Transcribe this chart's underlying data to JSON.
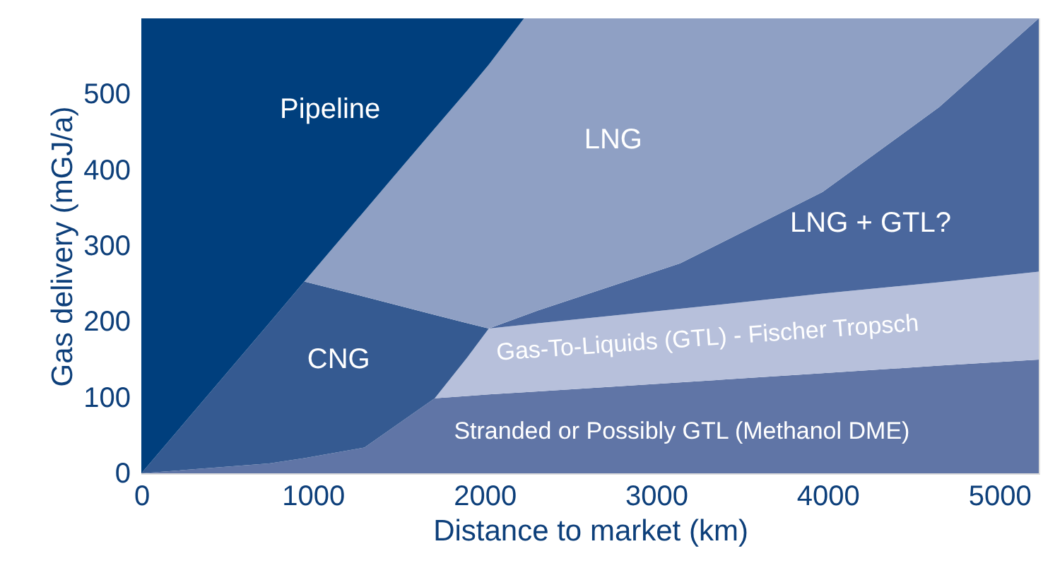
{
  "chart_data": {
    "type": "area",
    "stacked": true,
    "xlabel": "Distance to market (km)",
    "ylabel": "Gas delivery (mGJ/a)",
    "x": [
      0,
      745,
      950,
      1300,
      1710,
      1900,
      2025,
      2230,
      2314,
      3140,
      3970,
      4650,
      5230
    ],
    "xlim": [
      0,
      5230
    ],
    "ylim": [
      0,
      600
    ],
    "xticks": [
      0,
      1000,
      2000,
      3000,
      4000,
      5000
    ],
    "yticks": [
      0,
      100,
      200,
      300,
      400,
      500
    ],
    "grid": false,
    "series": [
      {
        "name": "Stranded or Possibly GTL (Methanol DME)",
        "color": "#6075a6",
        "values": [
          0,
          13,
          20,
          34,
          99,
          102,
          104,
          107,
          108,
          120,
          132,
          142,
          150
        ]
      },
      {
        "name": "Gas-To-Liquids (GTL) - Fischer Tropsch",
        "color": "#b7c0db",
        "values": [
          null,
          null,
          null,
          null,
          0,
          51,
          87,
          89,
          90,
          97,
          105,
          110,
          116
        ]
      },
      {
        "name": "CNG",
        "color": "#355a91",
        "values": [
          0,
          185,
          233,
          199,
          110,
          45,
          0,
          null,
          null,
          null,
          null,
          null,
          null
        ]
      },
      {
        "name": "LNG + GTL?",
        "color": "#4a679d",
        "values": [
          null,
          null,
          null,
          null,
          null,
          null,
          0,
          12,
          17,
          60,
          134,
          231,
          334
        ]
      },
      {
        "name": "LNG",
        "color": "#8fa0c4",
        "values": [
          null,
          null,
          0,
          113,
          246,
          307,
          348,
          392,
          385,
          323,
          229,
          117,
          0
        ]
      },
      {
        "name": "Pipeline",
        "color": "#003f7d",
        "values": [
          600,
          402,
          347,
          254,
          145,
          95,
          61,
          0,
          null,
          null,
          null,
          null,
          null
        ]
      }
    ]
  }
}
